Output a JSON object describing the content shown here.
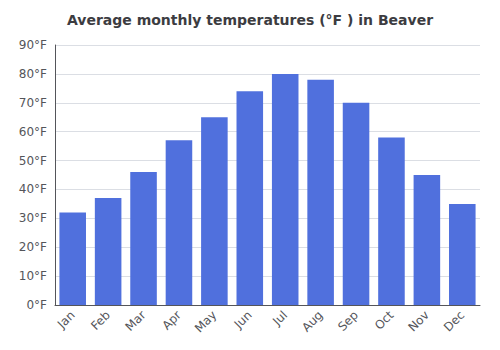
{
  "chart_data": {
    "type": "bar",
    "title": "Average monthly temperatures (°F ) in Beaver",
    "categories": [
      "Jan",
      "Feb",
      "Mar",
      "Apr",
      "May",
      "Jun",
      "Jul",
      "Aug",
      "Sep",
      "Oct",
      "Nov",
      "Dec"
    ],
    "values": [
      32,
      37,
      46,
      57,
      65,
      74,
      80,
      78,
      70,
      58,
      45,
      35
    ],
    "ylim": [
      0,
      90
    ],
    "yticks": [
      {
        "value": 0,
        "label": "0°F"
      },
      {
        "value": 10,
        "label": "10°F"
      },
      {
        "value": 20,
        "label": "20°F"
      },
      {
        "value": 30,
        "label": "30°F"
      },
      {
        "value": 40,
        "label": "40°F"
      },
      {
        "value": 50,
        "label": "50°F"
      },
      {
        "value": 60,
        "label": "60°F"
      },
      {
        "value": 70,
        "label": "70°F"
      },
      {
        "value": 80,
        "label": "80°F"
      },
      {
        "value": 90,
        "label": "90°F"
      }
    ],
    "grid": true
  }
}
